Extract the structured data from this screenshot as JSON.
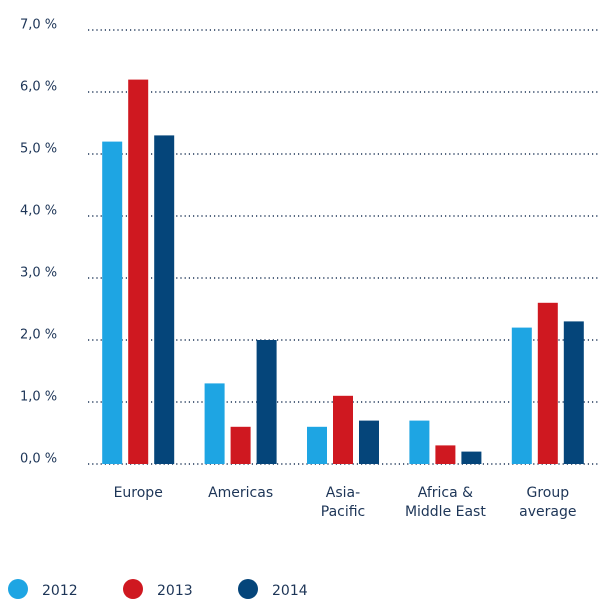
{
  "chart_data": {
    "type": "bar",
    "categories": [
      "Europe",
      "Americas",
      "Asia-\nPacific",
      "Africa &\nMiddle East",
      "Group\naverage"
    ],
    "series": [
      {
        "name": "2012",
        "color": "#1ea5e3",
        "values": [
          5.2,
          1.3,
          0.6,
          0.7,
          2.2
        ]
      },
      {
        "name": "2013",
        "color": "#cf1820",
        "values": [
          6.2,
          0.6,
          1.1,
          0.3,
          2.6
        ]
      },
      {
        "name": "2014",
        "color": "#05457a",
        "values": [
          5.3,
          2.0,
          0.7,
          0.2,
          2.3
        ]
      }
    ],
    "ylim": [
      0,
      7
    ],
    "yticks": [
      {
        "value": 0,
        "label": "0,0 %"
      },
      {
        "value": 1,
        "label": "1,0 %"
      },
      {
        "value": 2,
        "label": "2,0 %"
      },
      {
        "value": 3,
        "label": "3,0 %"
      },
      {
        "value": 4,
        "label": "4,0 %"
      },
      {
        "value": 5,
        "label": "5,0 %"
      },
      {
        "value": 6,
        "label": "6,0 %"
      },
      {
        "value": 7,
        "label": "7,0 %"
      }
    ],
    "grid": true
  }
}
